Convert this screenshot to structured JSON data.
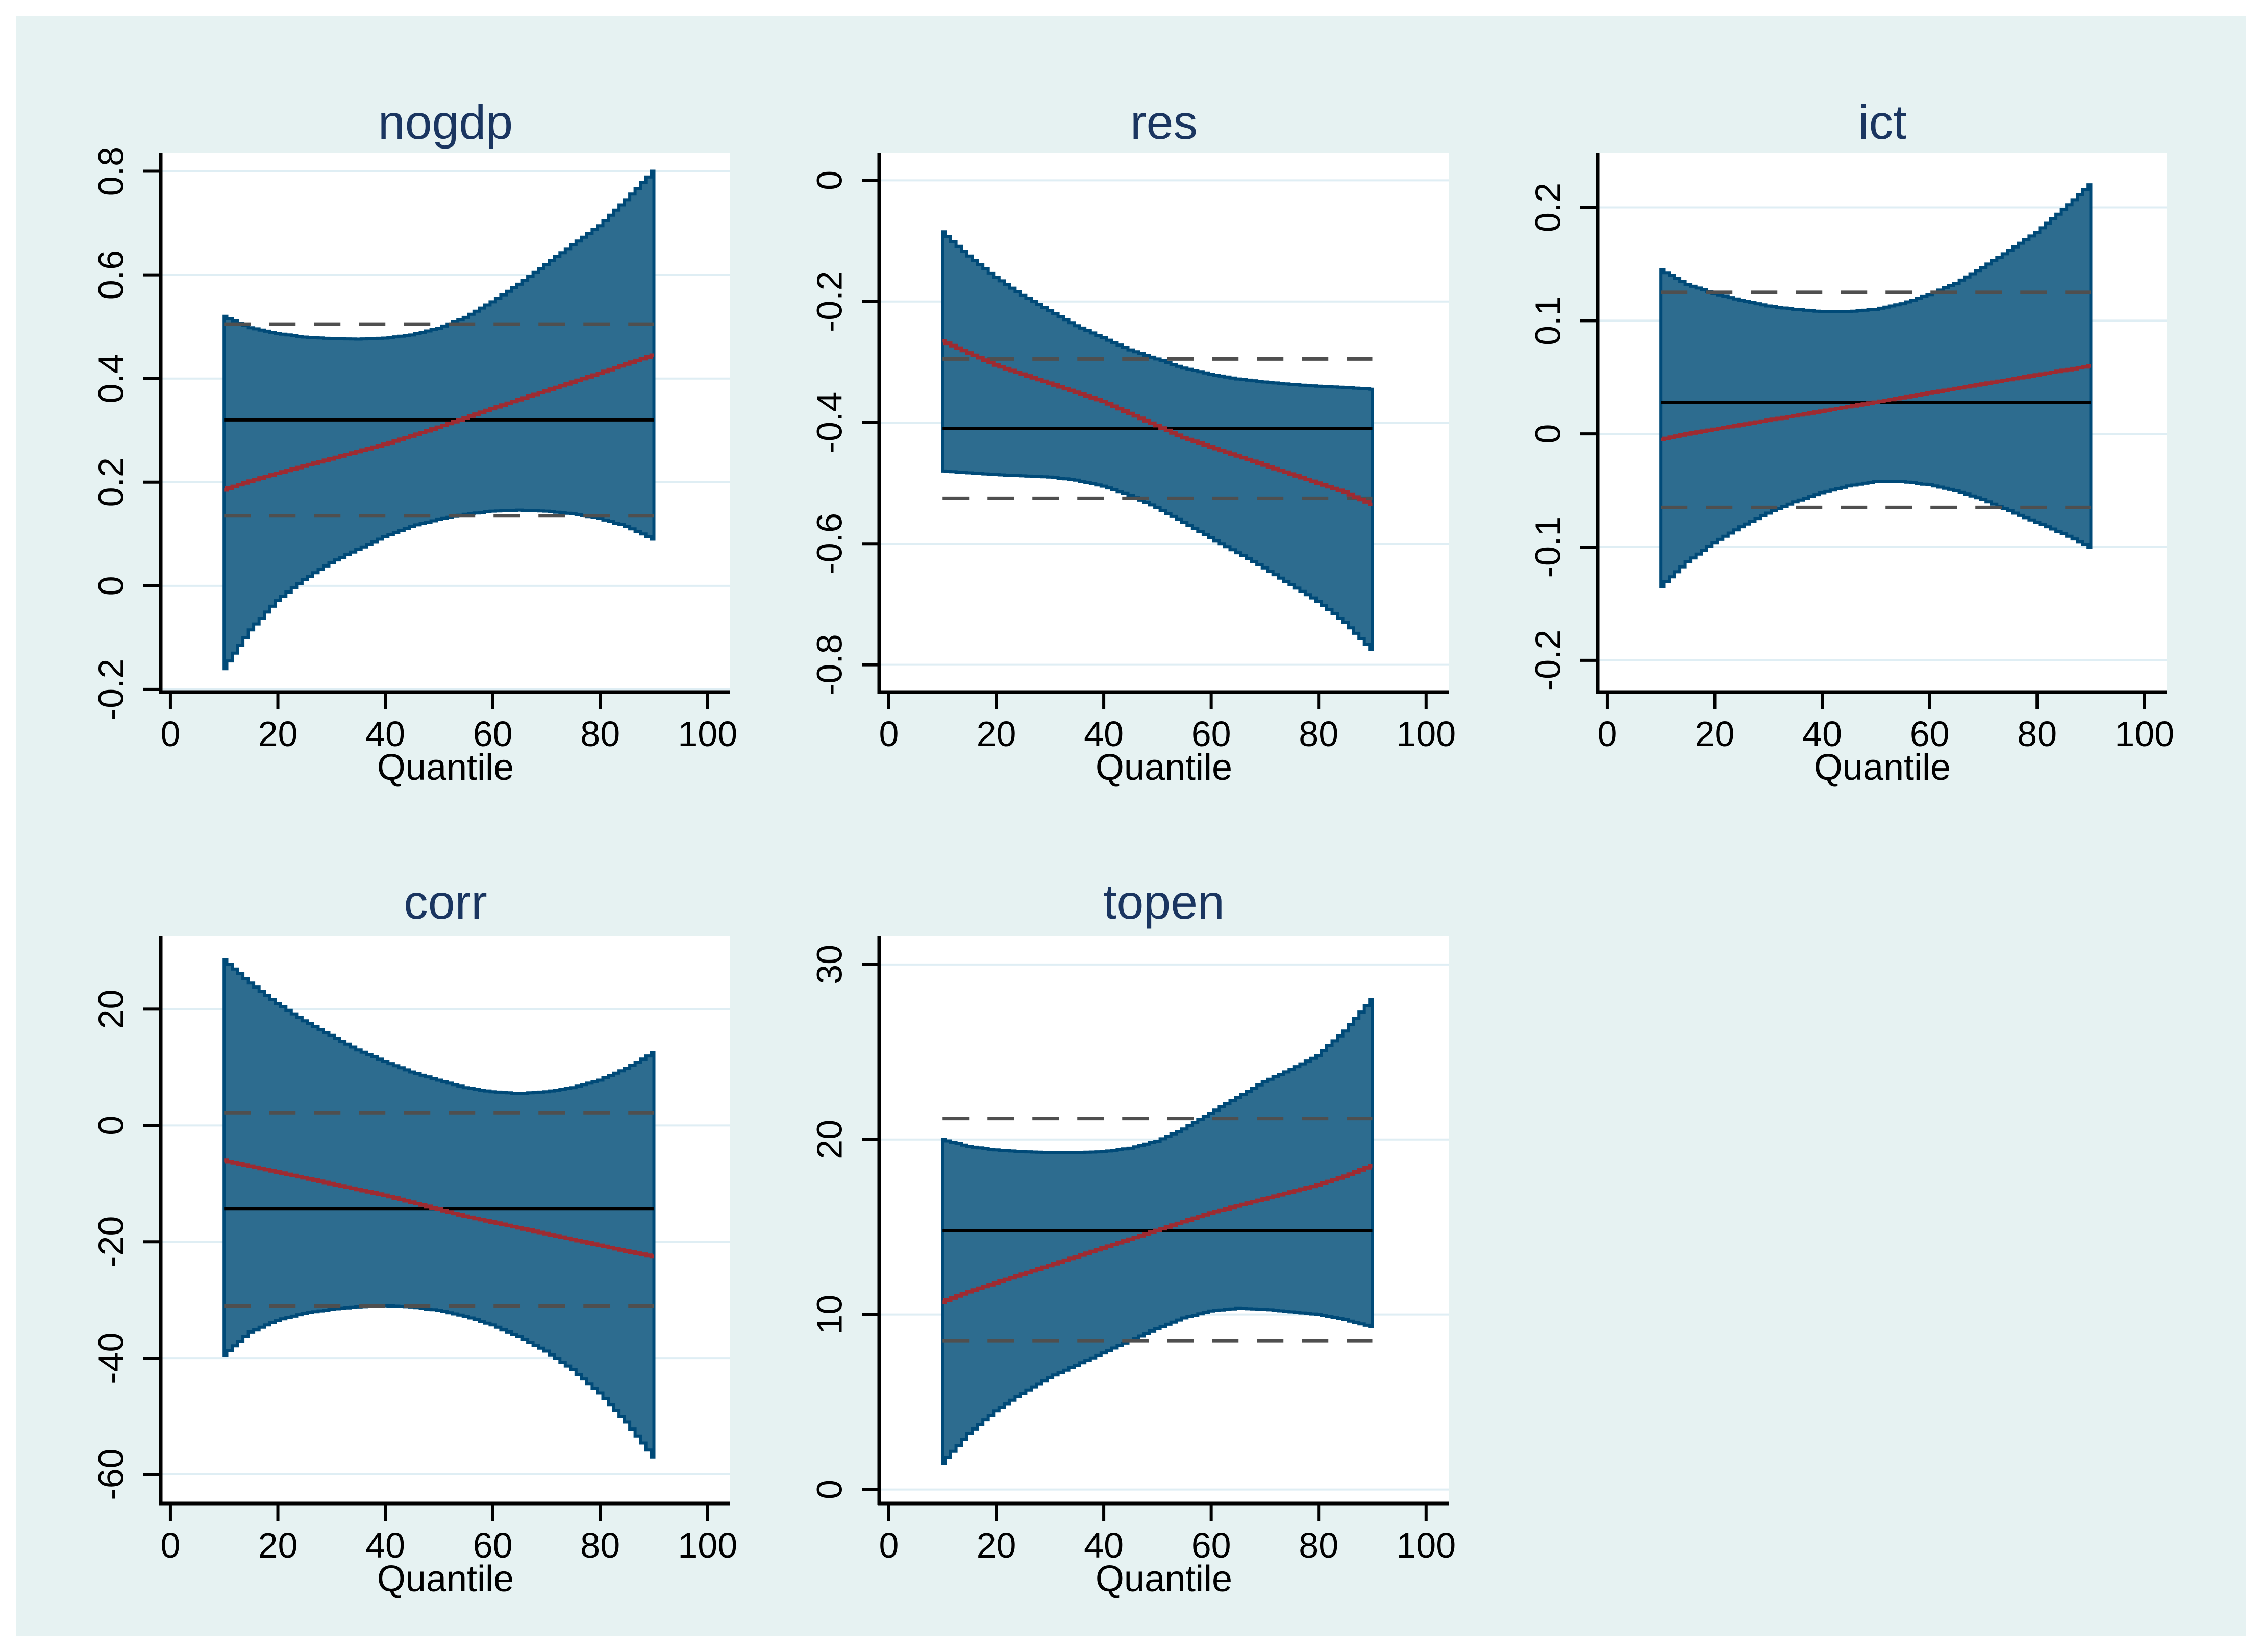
{
  "figure": {
    "colors": {
      "figure_bg": "#e6f2f2",
      "plot_bg": "#ffffff",
      "gridline": "#dfeef4",
      "band_fill": "#2d6c8f",
      "band_outline": "#004a78",
      "quantile_line": "#9e2b31",
      "ols_line": "#000000",
      "ols_ci_dash": "#4f4f4f",
      "axis": "#000000",
      "title": "#1a3560",
      "tick_label": "#000000"
    }
  },
  "chart_data": [
    {
      "type": "area",
      "title": "nogdp",
      "xlabel": "Quantile",
      "grid_pos": {
        "row": 0,
        "col": 0
      },
      "xlim": [
        -1.8,
        104.2
      ],
      "ylim": [
        -0.205,
        0.835
      ],
      "xticks": [
        0,
        20,
        40,
        60,
        80,
        100
      ],
      "yticks": [
        {
          "v": 0.8,
          "label": "0.8"
        },
        {
          "v": 0.6,
          "label": "0.6"
        },
        {
          "v": 0.4,
          "label": "0.4"
        },
        {
          "v": 0.2,
          "label": "0.2"
        },
        {
          "v": 0,
          "label": "0"
        },
        {
          "v": -0.2,
          "label": "-0.2"
        }
      ],
      "x": [
        10,
        15,
        20,
        25,
        30,
        35,
        40,
        45,
        50,
        55,
        60,
        65,
        70,
        75,
        80,
        85,
        90
      ],
      "band_upper": [
        0.52,
        0.498,
        0.487,
        0.48,
        0.477,
        0.476,
        0.478,
        0.484,
        0.497,
        0.518,
        0.548,
        0.582,
        0.62,
        0.658,
        0.695,
        0.745,
        0.8
      ],
      "band_lower": [
        -0.16,
        -0.085,
        -0.028,
        0.012,
        0.045,
        0.07,
        0.095,
        0.115,
        0.128,
        0.138,
        0.144,
        0.146,
        0.144,
        0.139,
        0.13,
        0.115,
        0.09
      ],
      "quantile_coef": [
        0.185,
        0.202,
        0.217,
        0.231,
        0.245,
        0.259,
        0.273,
        0.289,
        0.306,
        0.324,
        0.342,
        0.359,
        0.376,
        0.393,
        0.41,
        0.428,
        0.445
      ],
      "ols": 0.32,
      "ols_ci": [
        0.135,
        0.505
      ]
    },
    {
      "type": "area",
      "title": "res",
      "xlabel": "Quantile",
      "grid_pos": {
        "row": 0,
        "col": 1
      },
      "xlim": [
        -1.8,
        104.2
      ],
      "ylim": [
        -0.845,
        0.045
      ],
      "xticks": [
        0,
        20,
        40,
        60,
        80,
        100
      ],
      "yticks": [
        {
          "v": 0,
          "label": "0"
        },
        {
          "v": -0.2,
          "label": "-0.2"
        },
        {
          "v": -0.4,
          "label": "-0.4"
        },
        {
          "v": -0.6,
          "label": "-0.6"
        },
        {
          "v": -0.8,
          "label": "-0.8"
        }
      ],
      "x": [
        10,
        15,
        20,
        25,
        30,
        35,
        40,
        45,
        50,
        55,
        60,
        65,
        70,
        75,
        80,
        85,
        90
      ],
      "band_upper": [
        -0.085,
        -0.125,
        -0.16,
        -0.19,
        -0.215,
        -0.24,
        -0.26,
        -0.28,
        -0.295,
        -0.31,
        -0.32,
        -0.328,
        -0.333,
        -0.337,
        -0.34,
        -0.342,
        -0.345
      ],
      "band_lower": [
        -0.48,
        -0.483,
        -0.486,
        -0.488,
        -0.49,
        -0.495,
        -0.505,
        -0.52,
        -0.54,
        -0.565,
        -0.59,
        -0.615,
        -0.64,
        -0.668,
        -0.695,
        -0.73,
        -0.775
      ],
      "quantile_coef": [
        -0.265,
        -0.285,
        -0.305,
        -0.32,
        -0.335,
        -0.35,
        -0.365,
        -0.385,
        -0.405,
        -0.425,
        -0.44,
        -0.455,
        -0.47,
        -0.485,
        -0.5,
        -0.515,
        -0.535
      ],
      "ols": -0.41,
      "ols_ci": [
        -0.525,
        -0.295
      ]
    },
    {
      "type": "area",
      "title": "ict",
      "xlabel": "Quantile",
      "grid_pos": {
        "row": 0,
        "col": 2
      },
      "xlim": [
        -1.8,
        104.2
      ],
      "ylim": [
        -0.228,
        0.248
      ],
      "xticks": [
        0,
        20,
        40,
        60,
        80,
        100
      ],
      "yticks": [
        {
          "v": 0.2,
          "label": "0.2"
        },
        {
          "v": 0.1,
          "label": "0.1"
        },
        {
          "v": 0,
          "label": "0"
        },
        {
          "v": -0.1,
          "label": "-0.1"
        },
        {
          "v": -0.2,
          "label": "-0.2"
        }
      ],
      "x": [
        10,
        15,
        20,
        25,
        30,
        35,
        40,
        45,
        50,
        55,
        60,
        65,
        70,
        75,
        80,
        85,
        90
      ],
      "band_upper": [
        0.145,
        0.132,
        0.124,
        0.118,
        0.113,
        0.11,
        0.108,
        0.108,
        0.11,
        0.115,
        0.123,
        0.133,
        0.147,
        0.162,
        0.178,
        0.198,
        0.22
      ],
      "band_lower": [
        -0.135,
        -0.113,
        -0.096,
        -0.082,
        -0.07,
        -0.06,
        -0.052,
        -0.046,
        -0.042,
        -0.042,
        -0.045,
        -0.05,
        -0.058,
        -0.068,
        -0.078,
        -0.088,
        -0.1
      ],
      "quantile_coef": [
        -0.005,
        0.0,
        0.004,
        0.008,
        0.012,
        0.016,
        0.02,
        0.024,
        0.028,
        0.032,
        0.036,
        0.04,
        0.044,
        0.048,
        0.052,
        0.056,
        0.06
      ],
      "ols": 0.028,
      "ols_ci": [
        -0.065,
        0.125
      ]
    },
    {
      "type": "area",
      "title": "corr",
      "xlabel": "Quantile",
      "grid_pos": {
        "row": 1,
        "col": 0
      },
      "xlim": [
        -1.8,
        104.2
      ],
      "ylim": [
        -65,
        32.5
      ],
      "xticks": [
        0,
        20,
        40,
        60,
        80,
        100
      ],
      "yticks": [
        {
          "v": 20,
          "label": "20"
        },
        {
          "v": 0,
          "label": "0"
        },
        {
          "v": -20,
          "label": "-20"
        },
        {
          "v": -40,
          "label": "-40"
        },
        {
          "v": -60,
          "label": "-60"
        }
      ],
      "x": [
        10,
        15,
        20,
        25,
        30,
        35,
        40,
        45,
        50,
        55,
        60,
        65,
        70,
        75,
        80,
        85,
        90
      ],
      "band_upper": [
        28.5,
        24.5,
        21.0,
        18.0,
        15.5,
        13.0,
        11.0,
        9.2,
        7.8,
        6.5,
        5.8,
        5.5,
        5.8,
        6.5,
        7.8,
        9.8,
        12.5
      ],
      "band_lower": [
        -39.5,
        -35.5,
        -33.5,
        -32.3,
        -31.6,
        -31.2,
        -31.0,
        -31.2,
        -31.8,
        -32.8,
        -34.3,
        -36.3,
        -38.8,
        -42.0,
        -46.0,
        -51.0,
        -57.0
      ],
      "quantile_coef": [
        -6.0,
        -7.0,
        -8.0,
        -9.0,
        -10.0,
        -11.0,
        -12.0,
        -13.2,
        -14.4,
        -15.6,
        -16.6,
        -17.6,
        -18.6,
        -19.6,
        -20.6,
        -21.6,
        -22.5
      ],
      "ols": -14.3,
      "ols_ci": [
        -31.0,
        2.2
      ]
    },
    {
      "type": "area",
      "title": "topen",
      "xlabel": "Quantile",
      "grid_pos": {
        "row": 1,
        "col": 1
      },
      "xlim": [
        -1.8,
        104.2
      ],
      "ylim": [
        -0.8,
        31.6
      ],
      "xticks": [
        0,
        20,
        40,
        60,
        80,
        100
      ],
      "yticks": [
        {
          "v": 30,
          "label": "30"
        },
        {
          "v": 20,
          "label": "20"
        },
        {
          "v": 10,
          "label": "10"
        },
        {
          "v": 0,
          "label": "0"
        }
      ],
      "x": [
        10,
        15,
        20,
        25,
        30,
        35,
        40,
        45,
        50,
        55,
        60,
        65,
        70,
        75,
        80,
        85,
        90
      ],
      "band_upper": [
        20.0,
        19.6,
        19.4,
        19.3,
        19.25,
        19.25,
        19.3,
        19.5,
        19.9,
        20.6,
        21.5,
        22.4,
        23.3,
        24.0,
        24.8,
        26.2,
        28.0
      ],
      "band_lower": [
        1.5,
        3.2,
        4.5,
        5.5,
        6.4,
        7.1,
        7.8,
        8.5,
        9.2,
        9.8,
        10.2,
        10.35,
        10.3,
        10.15,
        10.0,
        9.7,
        9.3
      ],
      "quantile_coef": [
        10.7,
        11.3,
        11.8,
        12.3,
        12.8,
        13.3,
        13.8,
        14.3,
        14.8,
        15.3,
        15.8,
        16.2,
        16.6,
        17.0,
        17.4,
        17.9,
        18.5
      ],
      "ols": 14.8,
      "ols_ci": [
        8.5,
        21.2
      ]
    }
  ]
}
